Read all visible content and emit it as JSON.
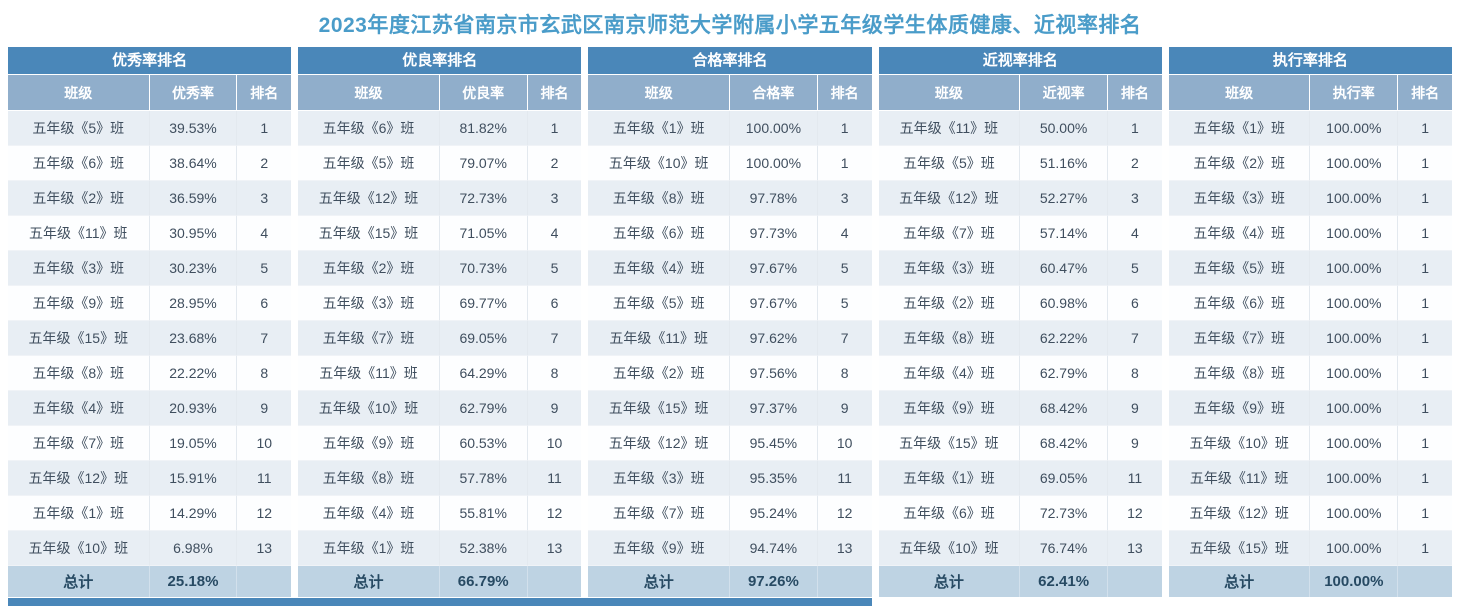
{
  "title": "2023年度江苏省南京市玄武区南京师范大学附属小学五年级学生体质健康、近视率排名",
  "colors": {
    "title_text": "#4a9cc9",
    "section_header_bg": "#4a87b9",
    "column_header_bg": "#90aecb",
    "row_stripe_bg": "#e8eef4",
    "total_row_bg": "#bed3e3",
    "cell_text": "#3f4e5e"
  },
  "tables": [
    {
      "section_title": "优秀率排名",
      "columns": [
        "班级",
        "优秀率",
        "排名"
      ],
      "rows": [
        [
          "五年级《5》班",
          "39.53%",
          "1"
        ],
        [
          "五年级《6》班",
          "38.64%",
          "2"
        ],
        [
          "五年级《2》班",
          "36.59%",
          "3"
        ],
        [
          "五年级《11》班",
          "30.95%",
          "4"
        ],
        [
          "五年级《3》班",
          "30.23%",
          "5"
        ],
        [
          "五年级《9》班",
          "28.95%",
          "6"
        ],
        [
          "五年级《15》班",
          "23.68%",
          "7"
        ],
        [
          "五年级《8》班",
          "22.22%",
          "8"
        ],
        [
          "五年级《4》班",
          "20.93%",
          "9"
        ],
        [
          "五年级《7》班",
          "19.05%",
          "10"
        ],
        [
          "五年级《12》班",
          "15.91%",
          "11"
        ],
        [
          "五年级《1》班",
          "14.29%",
          "12"
        ],
        [
          "五年级《10》班",
          "6.98%",
          "13"
        ]
      ],
      "total_label": "总计",
      "total_value": "25.18%"
    },
    {
      "section_title": "优良率排名",
      "columns": [
        "班级",
        "优良率",
        "排名"
      ],
      "rows": [
        [
          "五年级《6》班",
          "81.82%",
          "1"
        ],
        [
          "五年级《5》班",
          "79.07%",
          "2"
        ],
        [
          "五年级《12》班",
          "72.73%",
          "3"
        ],
        [
          "五年级《15》班",
          "71.05%",
          "4"
        ],
        [
          "五年级《2》班",
          "70.73%",
          "5"
        ],
        [
          "五年级《3》班",
          "69.77%",
          "6"
        ],
        [
          "五年级《7》班",
          "69.05%",
          "7"
        ],
        [
          "五年级《11》班",
          "64.29%",
          "8"
        ],
        [
          "五年级《10》班",
          "62.79%",
          "9"
        ],
        [
          "五年级《9》班",
          "60.53%",
          "10"
        ],
        [
          "五年级《8》班",
          "57.78%",
          "11"
        ],
        [
          "五年级《4》班",
          "55.81%",
          "12"
        ],
        [
          "五年级《1》班",
          "52.38%",
          "13"
        ]
      ],
      "total_label": "总计",
      "total_value": "66.79%"
    },
    {
      "section_title": "合格率排名",
      "columns": [
        "班级",
        "合格率",
        "排名"
      ],
      "rows": [
        [
          "五年级《1》班",
          "100.00%",
          "1"
        ],
        [
          "五年级《10》班",
          "100.00%",
          "1"
        ],
        [
          "五年级《8》班",
          "97.78%",
          "3"
        ],
        [
          "五年级《6》班",
          "97.73%",
          "4"
        ],
        [
          "五年级《4》班",
          "97.67%",
          "5"
        ],
        [
          "五年级《5》班",
          "97.67%",
          "5"
        ],
        [
          "五年级《11》班",
          "97.62%",
          "7"
        ],
        [
          "五年级《2》班",
          "97.56%",
          "8"
        ],
        [
          "五年级《15》班",
          "97.37%",
          "9"
        ],
        [
          "五年级《12》班",
          "95.45%",
          "10"
        ],
        [
          "五年级《3》班",
          "95.35%",
          "11"
        ],
        [
          "五年级《7》班",
          "95.24%",
          "12"
        ],
        [
          "五年级《9》班",
          "94.74%",
          "13"
        ]
      ],
      "total_label": "总计",
      "total_value": "97.26%"
    },
    {
      "section_title": "近视率排名",
      "columns": [
        "班级",
        "近视率",
        "排名"
      ],
      "rows": [
        [
          "五年级《11》班",
          "50.00%",
          "1"
        ],
        [
          "五年级《5》班",
          "51.16%",
          "2"
        ],
        [
          "五年级《12》班",
          "52.27%",
          "3"
        ],
        [
          "五年级《7》班",
          "57.14%",
          "4"
        ],
        [
          "五年级《3》班",
          "60.47%",
          "5"
        ],
        [
          "五年级《2》班",
          "60.98%",
          "6"
        ],
        [
          "五年级《8》班",
          "62.22%",
          "7"
        ],
        [
          "五年级《4》班",
          "62.79%",
          "8"
        ],
        [
          "五年级《9》班",
          "68.42%",
          "9"
        ],
        [
          "五年级《15》班",
          "68.42%",
          "9"
        ],
        [
          "五年级《1》班",
          "69.05%",
          "11"
        ],
        [
          "五年级《6》班",
          "72.73%",
          "12"
        ],
        [
          "五年级《10》班",
          "76.74%",
          "13"
        ]
      ],
      "total_label": "总计",
      "total_value": "62.41%"
    },
    {
      "section_title": "执行率排名",
      "columns": [
        "班级",
        "执行率",
        "排名"
      ],
      "rows": [
        [
          "五年级《1》班",
          "100.00%",
          "1"
        ],
        [
          "五年级《2》班",
          "100.00%",
          "1"
        ],
        [
          "五年级《3》班",
          "100.00%",
          "1"
        ],
        [
          "五年级《4》班",
          "100.00%",
          "1"
        ],
        [
          "五年级《5》班",
          "100.00%",
          "1"
        ],
        [
          "五年级《6》班",
          "100.00%",
          "1"
        ],
        [
          "五年级《7》班",
          "100.00%",
          "1"
        ],
        [
          "五年级《8》班",
          "100.00%",
          "1"
        ],
        [
          "五年级《9》班",
          "100.00%",
          "1"
        ],
        [
          "五年级《10》班",
          "100.00%",
          "1"
        ],
        [
          "五年级《11》班",
          "100.00%",
          "1"
        ],
        [
          "五年级《12》班",
          "100.00%",
          "1"
        ],
        [
          "五年级《15》班",
          "100.00%",
          "1"
        ]
      ],
      "total_label": "总计",
      "total_value": "100.00%"
    }
  ]
}
